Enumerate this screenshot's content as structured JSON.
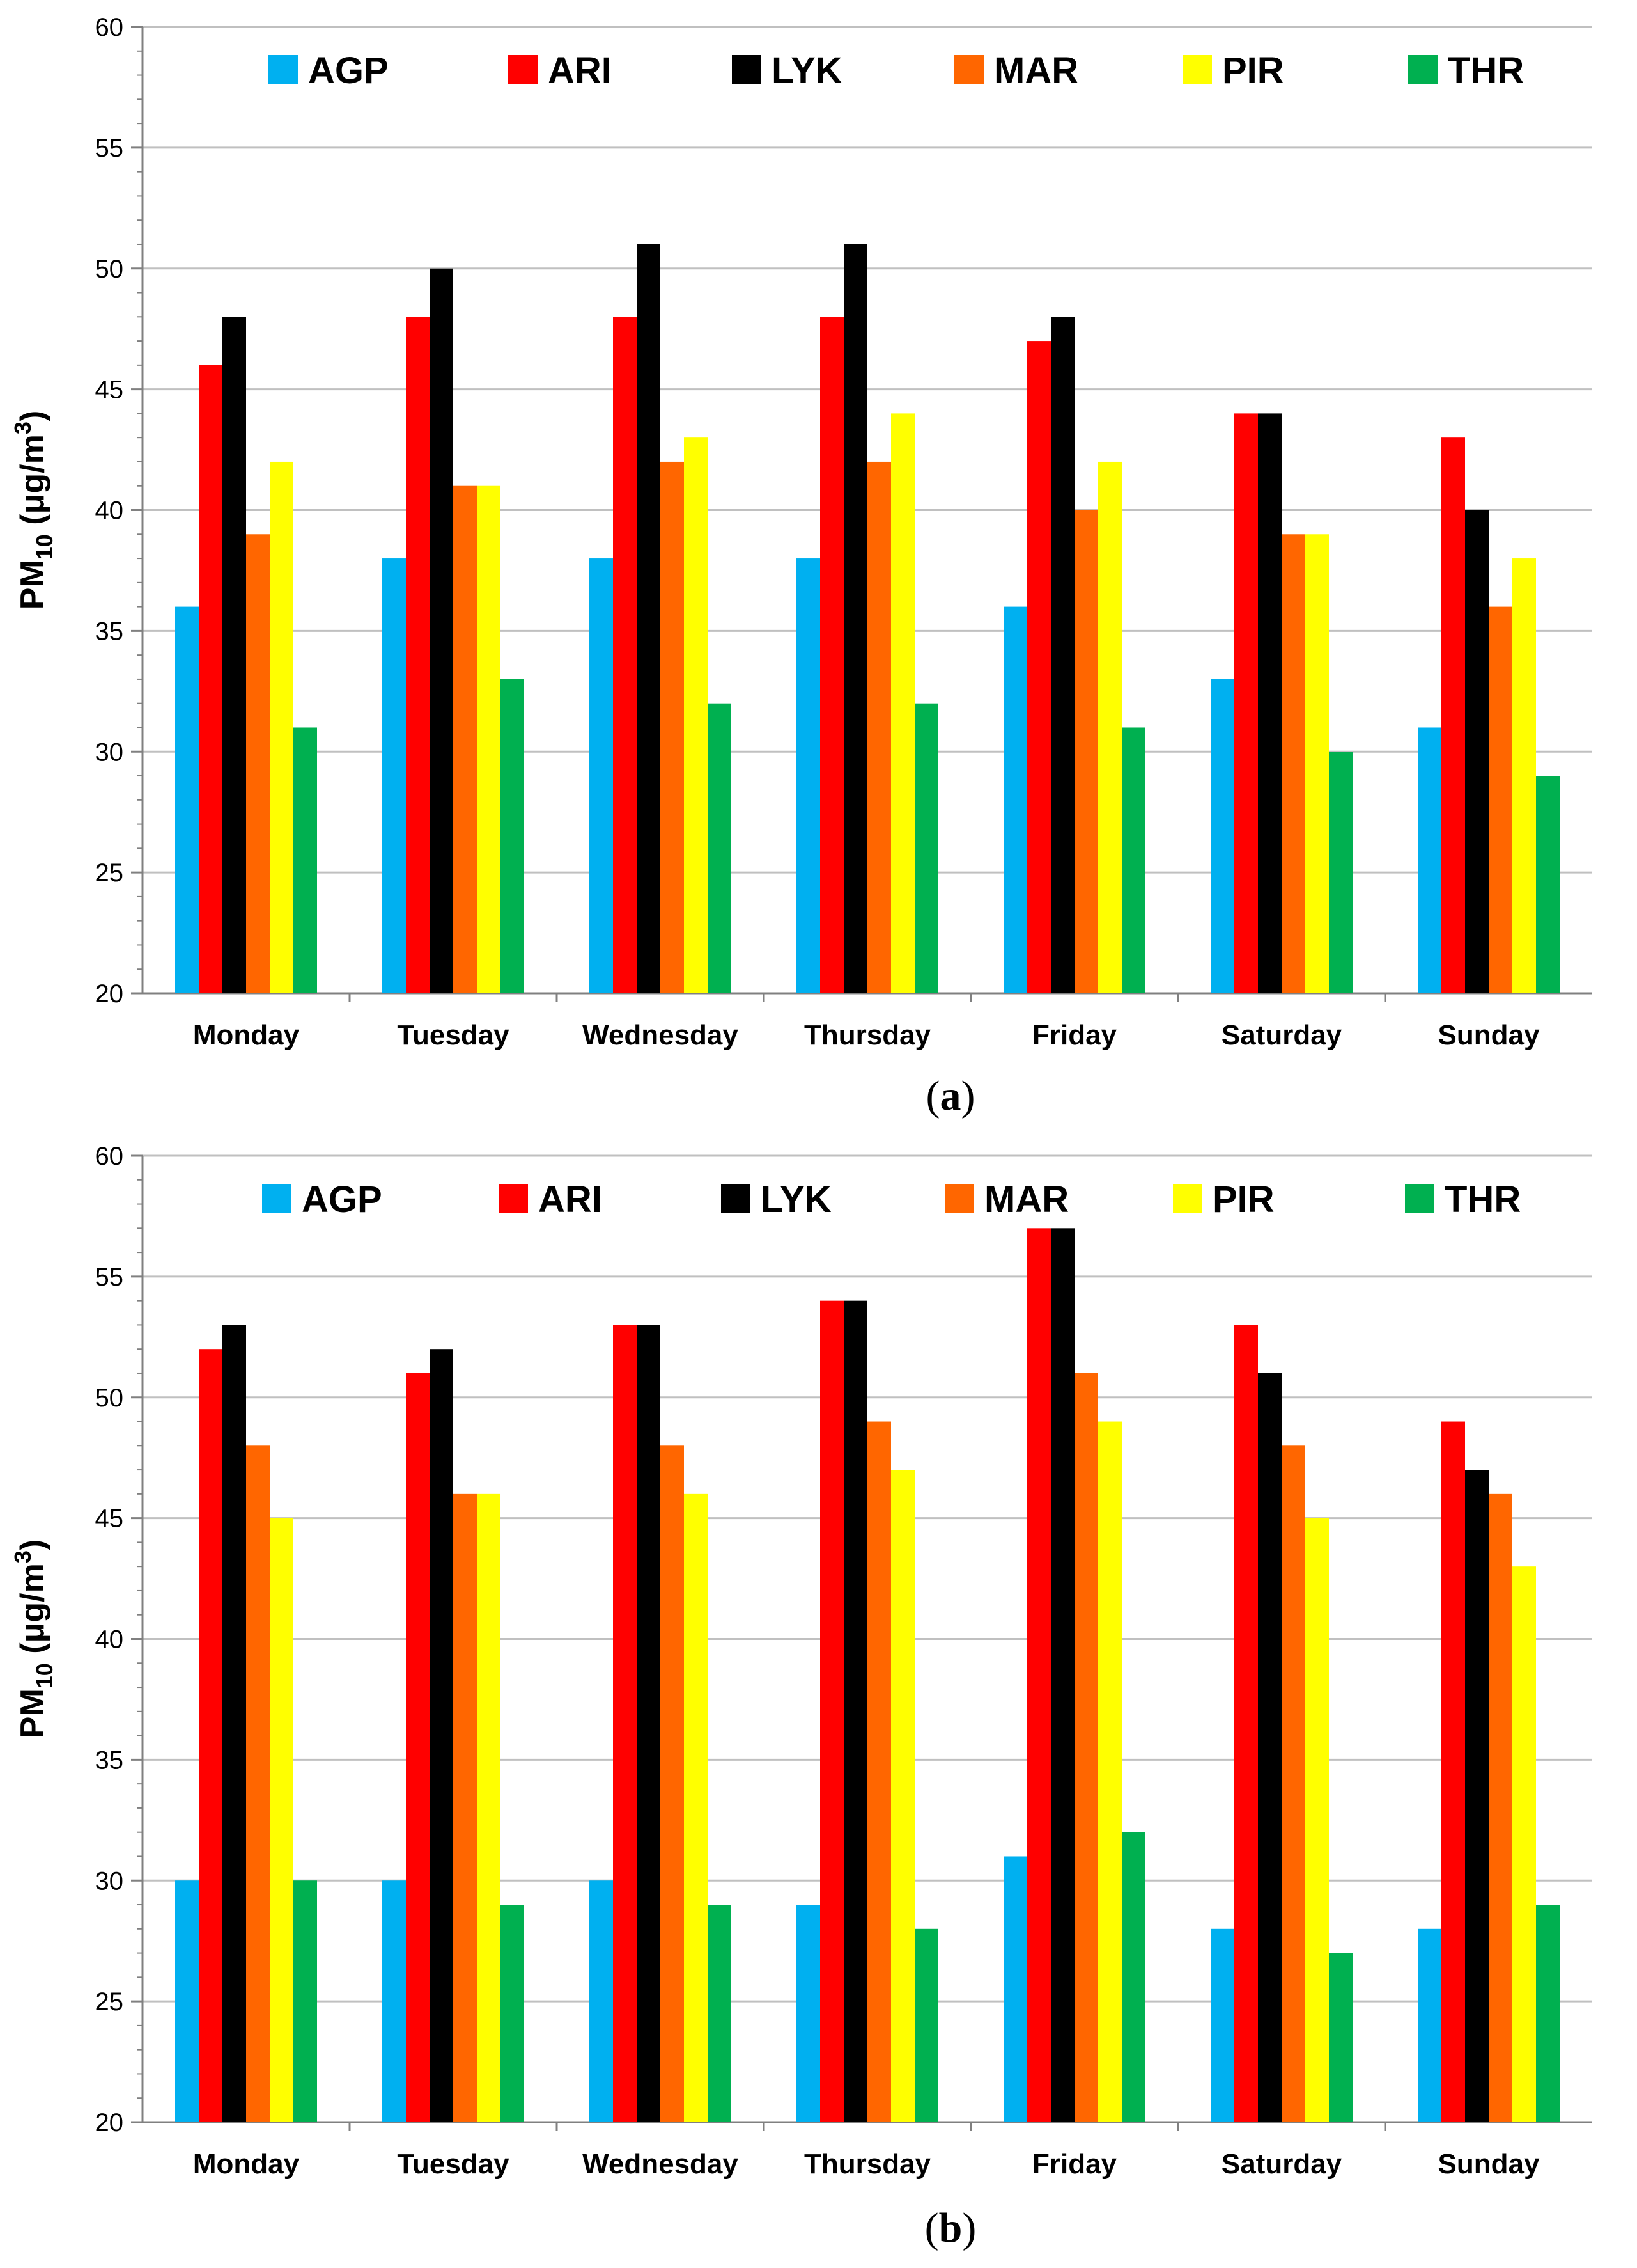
{
  "chart_data": [
    {
      "type": "bar",
      "panel": "a",
      "caption": {
        "open": "(",
        "letter": "a",
        "close": ")"
      },
      "ylabel": {
        "main": "PM",
        "sub": "10",
        "units_open": " (μg/m",
        "sup": "3",
        "units_close": ")"
      },
      "ylim": [
        20,
        60
      ],
      "yticks": [
        20,
        25,
        30,
        35,
        40,
        45,
        50,
        55,
        60
      ],
      "grid": true,
      "legend_position": "top",
      "categories": [
        "Monday",
        "Tuesday",
        "Wednesday",
        "Thursday",
        "Friday",
        "Saturday",
        "Sunday"
      ],
      "series": [
        {
          "name": "AGP",
          "color": "#00b0f0",
          "values": [
            36,
            38,
            38,
            38,
            36,
            33,
            31
          ]
        },
        {
          "name": "ARI",
          "color": "#ff0000",
          "values": [
            46,
            48,
            48,
            48,
            47,
            44,
            43
          ]
        },
        {
          "name": "LYK",
          "color": "#000000",
          "values": [
            48,
            50,
            51,
            51,
            48,
            44,
            40
          ]
        },
        {
          "name": "MAR",
          "color": "#ff6600",
          "values": [
            39,
            41,
            42,
            42,
            40,
            39,
            36
          ]
        },
        {
          "name": "PIR",
          "color": "#ffff00",
          "values": [
            42,
            41,
            43,
            44,
            42,
            39,
            38
          ]
        },
        {
          "name": "THR",
          "color": "#00b050",
          "values": [
            31,
            33,
            32,
            32,
            31,
            30,
            29
          ]
        }
      ]
    },
    {
      "type": "bar",
      "panel": "b",
      "caption": {
        "open": "(",
        "letter": "b",
        "close": ")"
      },
      "ylabel": {
        "main": "PM",
        "sub": "10",
        "units_open": " (μg/m",
        "sup": "3",
        "units_close": ")"
      },
      "ylim": [
        20,
        60
      ],
      "yticks": [
        20,
        25,
        30,
        35,
        40,
        45,
        50,
        55,
        60
      ],
      "grid": true,
      "legend_position": "top",
      "categories": [
        "Monday",
        "Tuesday",
        "Wednesday",
        "Thursday",
        "Friday",
        "Saturday",
        "Sunday"
      ],
      "series": [
        {
          "name": "AGP",
          "color": "#00b0f0",
          "values": [
            30,
            30,
            30,
            29,
            31,
            28,
            28
          ]
        },
        {
          "name": "ARI",
          "color": "#ff0000",
          "values": [
            52,
            51,
            53,
            54,
            57,
            53,
            49
          ]
        },
        {
          "name": "LYK",
          "color": "#000000",
          "values": [
            53,
            52,
            53,
            54,
            57,
            51,
            47
          ]
        },
        {
          "name": "MAR",
          "color": "#ff6600",
          "values": [
            48,
            46,
            48,
            49,
            51,
            48,
            46
          ]
        },
        {
          "name": "PIR",
          "color": "#ffff00",
          "values": [
            45,
            46,
            46,
            47,
            49,
            45,
            43
          ]
        },
        {
          "name": "THR",
          "color": "#00b050",
          "values": [
            30,
            29,
            29,
            28,
            32,
            27,
            29
          ]
        }
      ]
    }
  ]
}
